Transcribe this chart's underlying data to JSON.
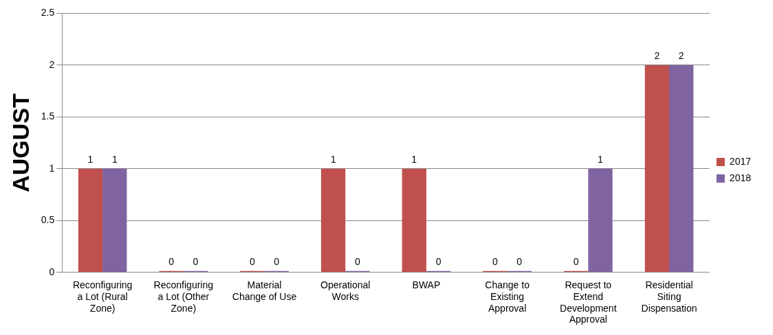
{
  "chart_data": {
    "type": "bar",
    "ylabel": "AUGUST",
    "categories": [
      "Reconfiguring a Lot (Rural Zone)",
      "Reconfiguring a Lot (Other Zone)",
      "Material Change of Use",
      "Operational Works",
      "BWAP",
      "Change to Existing Approval",
      "Request to Extend Development Approval",
      "Residential Siting Dispensation"
    ],
    "series": [
      {
        "name": "2017",
        "color": "#c0504d",
        "values": [
          1,
          0,
          0,
          1,
          1,
          0,
          0,
          2
        ]
      },
      {
        "name": "2018",
        "color": "#8064a2",
        "values": [
          1,
          0,
          0,
          0,
          0,
          0,
          1,
          2
        ]
      }
    ],
    "ylim": [
      0,
      2.5
    ],
    "yticks": [
      0,
      0.5,
      1,
      1.5,
      2,
      2.5
    ],
    "grid": "y",
    "legend": "right",
    "data_labels": true
  }
}
